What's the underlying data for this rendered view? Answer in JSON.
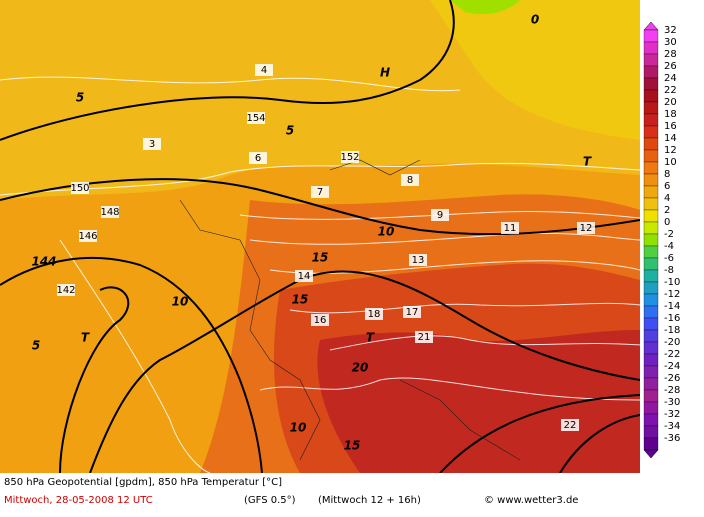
{
  "legend": {
    "labels": [
      32,
      30,
      28,
      26,
      24,
      22,
      20,
      18,
      16,
      14,
      12,
      10,
      8,
      6,
      4,
      2,
      0,
      -2,
      -4,
      -6,
      -8,
      -10,
      -12,
      -14,
      -16,
      -18,
      -20,
      -22,
      -24,
      -26,
      -28,
      -30,
      -32,
      -34,
      -36
    ],
    "colors": [
      "#f040f0",
      "#e030c8",
      "#c82898",
      "#b01868",
      "#a01038",
      "#a81020",
      "#b81818",
      "#c82020",
      "#d83018",
      "#e04810",
      "#e86010",
      "#f07810",
      "#f09010",
      "#f0a810",
      "#f0c010",
      "#f0e000",
      "#c8e800",
      "#90e000",
      "#50d040",
      "#30c070",
      "#20b0a0",
      "#20a0c0",
      "#2090e0",
      "#3070f0",
      "#4050f0",
      "#5040e0",
      "#6030d0",
      "#7020c0",
      "#8020b0",
      "#9020a0",
      "#a02090",
      "#9018a0",
      "#8010b0",
      "#7010a0",
      "#600090"
    ]
  },
  "map_labels": [
    "144",
    "5",
    "10",
    "15",
    "10",
    "15",
    "20",
    "15",
    "10",
    "5",
    "5",
    "T",
    "T",
    "H",
    "T",
    "152",
    "154",
    "150",
    "148",
    "146",
    "142",
    "4",
    "3",
    "6",
    "7",
    "8",
    "9",
    "11",
    "12",
    "13",
    "14",
    "16",
    "17",
    "18",
    "21",
    "22",
    "0"
  ],
  "footer": {
    "line1": "850 hPa Geopotential [gpdm], 850 hPa Temperatur [°C]",
    "date": "Mittwoch, 28-05-2008  12 UTC",
    "model": "(GFS 0.5°)",
    "run": "(Mittwoch 12 + 16h)",
    "credit": "© www.wetter3.de"
  }
}
